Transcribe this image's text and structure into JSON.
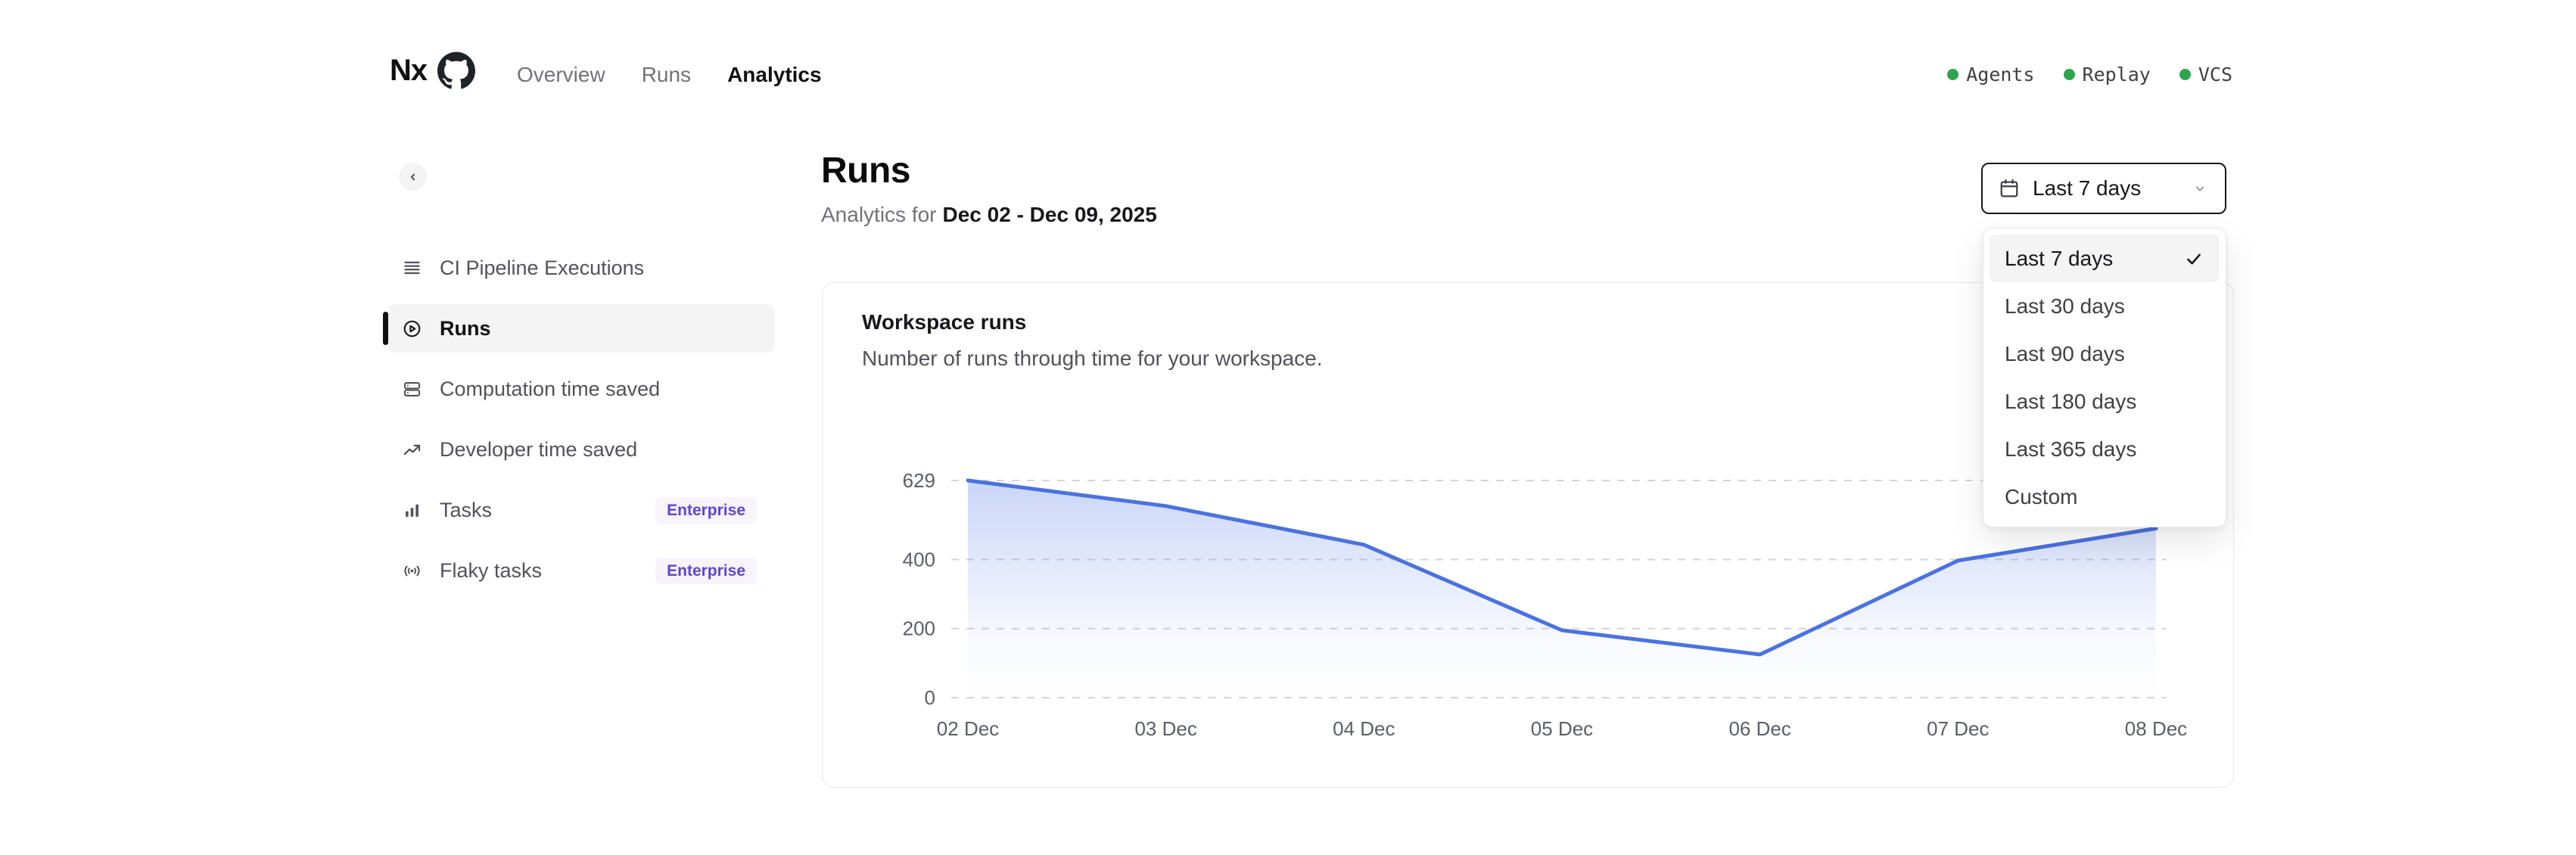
{
  "brand": {
    "logo_text": "Nx",
    "repo_icon": "github-icon"
  },
  "nav": {
    "items": [
      {
        "label": "Overview",
        "active": false
      },
      {
        "label": "Runs",
        "active": false
      },
      {
        "label": "Analytics",
        "active": true
      }
    ]
  },
  "status": {
    "dot_color": "#2da44e",
    "items": [
      {
        "label": "Agents"
      },
      {
        "label": "Replay"
      },
      {
        "label": "VCS"
      }
    ]
  },
  "sidebar": {
    "items": [
      {
        "label": "CI Pipeline Executions",
        "icon": "rows-icon",
        "active": false,
        "badge": ""
      },
      {
        "label": "Runs",
        "icon": "play-circle-icon",
        "active": true,
        "badge": ""
      },
      {
        "label": "Computation time saved",
        "icon": "server-icon",
        "active": false,
        "badge": ""
      },
      {
        "label": "Developer time saved",
        "icon": "trend-up-icon",
        "active": false,
        "badge": ""
      },
      {
        "label": "Tasks",
        "icon": "bar-chart-icon",
        "active": false,
        "badge": "Enterprise"
      },
      {
        "label": "Flaky tasks",
        "icon": "signal-icon",
        "active": false,
        "badge": "Enterprise"
      }
    ]
  },
  "page": {
    "title": "Runs",
    "subtitle_prefix": "Analytics for",
    "subtitle_range": "Dec 02 - Dec 09, 2025"
  },
  "date_filter": {
    "button_label": "Last 7 days",
    "button_icon": "calendar-icon",
    "options": [
      {
        "label": "Last 7 days",
        "selected": true
      },
      {
        "label": "Last 30 days",
        "selected": false
      },
      {
        "label": "Last 90 days",
        "selected": false
      },
      {
        "label": "Last 180 days",
        "selected": false
      },
      {
        "label": "Last 365 days",
        "selected": false
      },
      {
        "label": "Custom",
        "selected": false
      }
    ]
  },
  "chart_data": {
    "type": "area",
    "title": "Workspace runs",
    "subtitle": "Number of runs through time for your workspace.",
    "x": [
      "02 Dec",
      "03 Dec",
      "04 Dec",
      "05 Dec",
      "06 Dec",
      "07 Dec",
      "08 Dec"
    ],
    "series": [
      {
        "name": "Workspace runs",
        "values": [
          629,
          555,
          443,
          195,
          125,
          397,
          490
        ]
      }
    ],
    "yticks": [
      629,
      400,
      200,
      0
    ],
    "ylim": [
      0,
      629
    ],
    "xlabel": "",
    "ylabel": "",
    "grid": "dashed-horizontal",
    "legend": "none",
    "line_color": "#4a72e0",
    "fill_color": "#5e82e9",
    "axis_text_color": "#5b5e66",
    "grid_color": "#d4d4d8"
  }
}
